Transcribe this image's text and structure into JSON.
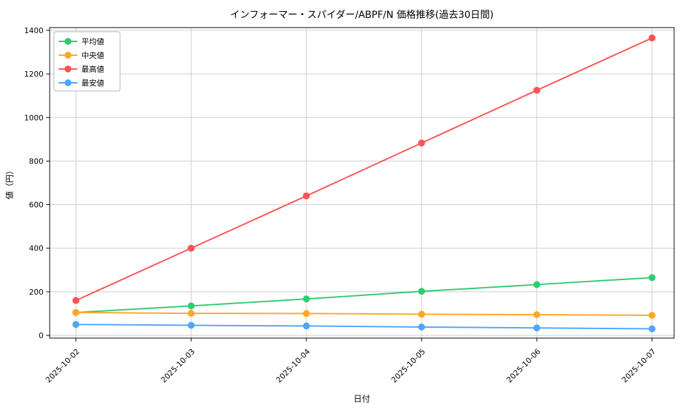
{
  "chart": {
    "title": "インフォーマー・スパイダー/ABPF/N 価格推移(過去30日間)",
    "xlabel": "日付",
    "ylabel": "値（円）"
  },
  "chart_data": {
    "type": "line",
    "title": "インフォーマー・スパイダー/ABPF/N 価格推移(過去30日間)",
    "xlabel": "日付",
    "ylabel": "値（円）",
    "x": [
      "2025-10-02",
      "2025-10-03",
      "2025-10-04",
      "2025-10-05",
      "2025-10-06",
      "2025-10-07"
    ],
    "series": [
      {
        "key": "average",
        "name": "平均値",
        "color": "#2ecc71",
        "values": [
          105,
          135,
          167,
          202,
          233,
          265
        ]
      },
      {
        "key": "median",
        "name": "中央値",
        "color": "#ffa726",
        "values": [
          105,
          101,
          100,
          97,
          95,
          92
        ]
      },
      {
        "key": "highest",
        "name": "最高値",
        "color": "#ff5252",
        "values": [
          160,
          400,
          640,
          883,
          1125,
          1365
        ]
      },
      {
        "key": "lowest",
        "name": "最安値",
        "color": "#4da6ff",
        "values": [
          50,
          46,
          43,
          38,
          34,
          30
        ]
      }
    ],
    "ylim": [
      0,
      1400
    ],
    "yticks": [
      0,
      200,
      400,
      600,
      800,
      1000,
      1200,
      1400
    ],
    "grid": true,
    "grid_color": "#cccccc",
    "axis_color": "#000000",
    "legend_position": "upper left"
  }
}
